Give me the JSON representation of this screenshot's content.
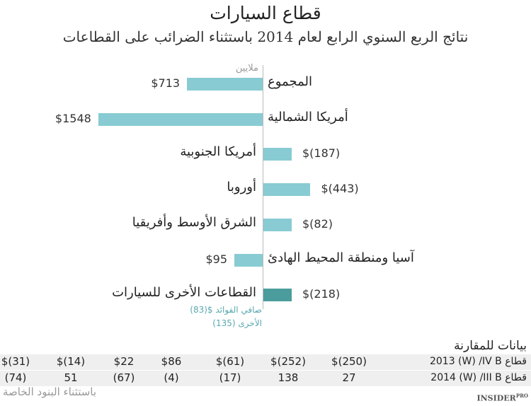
{
  "chart_data": {
    "type": "bar",
    "orientation": "horizontal",
    "title": "قطاع السيارات",
    "subtitle": "نتائج الربع السنوي الرابع لعام 2014 باستثناء الضرائب على القطاعات",
    "unit_label": "ملايين",
    "categories": [
      "المجموع",
      "أمريكا الشمالية",
      "أمريكا الجنوبية",
      "أوروبا",
      "الشرق الأوسط وأفريقيا",
      "آسيا ومنطقة المحيط الهادئ",
      "القطاعات الأخرى للسيارات"
    ],
    "values": [
      713,
      1548,
      -187,
      -443,
      -82,
      95,
      -218
    ],
    "value_labels": [
      "$713",
      "$1548",
      "$(187)",
      "$(443)",
      "$(82)",
      "$95",
      "$(218)"
    ],
    "highlight_index": 6,
    "notes": [
      "صافي الفوائد $(83)",
      "الأخرى (135)"
    ]
  },
  "colors": {
    "bar": "#88cbd3",
    "highlight": "#4b9c9c",
    "note": "#5aa9b0"
  },
  "table": {
    "heading": "بيانات للمقارنة",
    "rows": [
      {
        "label": "2013 (W) /IV B قطاع",
        "cells": [
          "$(250)",
          "$(252)",
          "$(61)",
          "$86",
          "$22",
          "$(14)",
          "$(31)"
        ]
      },
      {
        "label": "2014 (W) /III B قطاع",
        "cells": [
          "27",
          "138",
          "(17)",
          "(4)",
          "(67)",
          "51",
          "(74)"
        ]
      }
    ]
  },
  "footer": "باستثناء البنود الخاصة",
  "logo": "INSIDER PRO"
}
